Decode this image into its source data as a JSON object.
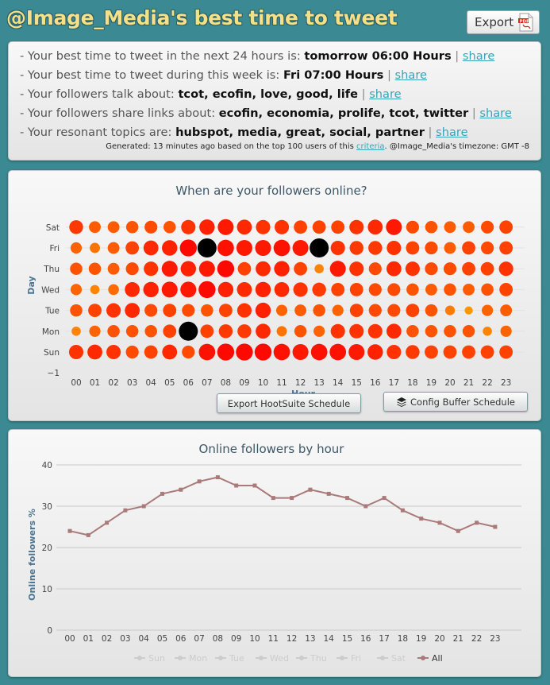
{
  "title": "@Image_Media's best time to tweet",
  "export_label": "Export",
  "info": {
    "lines": [
      {
        "prefix": "- Your best time to tweet in the next 24 hours is:",
        "value": "tomorrow 06:00 Hours",
        "link": "share"
      },
      {
        "prefix": "- Your best time to tweet during this week is:",
        "value": "Fri 07:00 Hours",
        "link": "share"
      },
      {
        "prefix": "- Your followers talk about:",
        "value": "tcot, ecofin, love, good, life",
        "link": "share"
      },
      {
        "prefix": "- Your followers share links about:",
        "value": "ecofin, economia, prolife, tcot, twitter",
        "link": "share"
      },
      {
        "prefix": "- Your resonant topics are:",
        "value": "hubspot, media, great, social, partner",
        "link": "share"
      }
    ],
    "generated_prefix": "Generated: 13 minutes ago based on the top 100 users of this",
    "generated_link": "criteria",
    "generated_suffix": ". @Image_Media's timezone: GMT -8"
  },
  "buttons": {
    "hootsuite": "Export HootSuite Schedule",
    "buffer": "Config Buffer Schedule"
  },
  "colors": {
    "heat_low": "#ffa500",
    "heat_high": "#ff0000",
    "peak": "#000000",
    "line": "#aa7a7a"
  },
  "chart_data": [
    {
      "type": "heatmap",
      "title": "When are your followers online?",
      "xlabel": "Hour",
      "ylabel": "Day",
      "x": [
        "00",
        "01",
        "02",
        "03",
        "04",
        "05",
        "06",
        "07",
        "08",
        "09",
        "10",
        "11",
        "12",
        "13",
        "14",
        "15",
        "16",
        "17",
        "18",
        "19",
        "20",
        "21",
        "22",
        "23"
      ],
      "y": [
        "Sun",
        "Mon",
        "Tue",
        "Wed",
        "Thu",
        "Fri",
        "Sat"
      ],
      "y_extra_tick": "−1",
      "values": [
        [
          0.7,
          0.75,
          0.7,
          0.55,
          0.6,
          0.75,
          0.55,
          0.9,
          0.95,
          0.95,
          0.95,
          0.9,
          0.85,
          0.9,
          0.9,
          0.85,
          0.8,
          0.7,
          0.65,
          0.6,
          0.6,
          0.6,
          0.6,
          0.6
        ],
        [
          0.2,
          0.4,
          0.5,
          0.5,
          0.5,
          0.6,
          1.0,
          0.6,
          0.65,
          0.65,
          0.75,
          0.3,
          0.5,
          0.4,
          0.7,
          0.7,
          0.7,
          0.75,
          0.5,
          0.5,
          0.5,
          0.5,
          0.2,
          0.4
        ],
        [
          0.5,
          0.6,
          0.7,
          0.75,
          0.55,
          0.6,
          0.55,
          0.5,
          0.6,
          0.7,
          0.8,
          0.4,
          0.45,
          0.5,
          0.4,
          0.6,
          0.55,
          0.55,
          0.6,
          0.5,
          0.25,
          0.1,
          0.4,
          0.45
        ],
        [
          0.4,
          0.2,
          0.35,
          0.75,
          0.8,
          0.85,
          0.85,
          0.95,
          0.8,
          0.75,
          0.8,
          0.75,
          0.7,
          0.65,
          0.6,
          0.6,
          0.55,
          0.55,
          0.5,
          0.45,
          0.5,
          0.45,
          0.5,
          0.6
        ],
        [
          0.5,
          0.5,
          0.45,
          0.55,
          0.7,
          0.85,
          0.8,
          0.85,
          0.95,
          0.6,
          0.75,
          0.8,
          0.6,
          0.2,
          0.85,
          0.7,
          0.55,
          0.75,
          0.7,
          0.55,
          0.55,
          0.6,
          0.6,
          0.7
        ],
        [
          0.4,
          0.3,
          0.45,
          0.6,
          0.75,
          0.8,
          0.95,
          1.0,
          0.9,
          0.85,
          0.85,
          0.9,
          0.85,
          1.0,
          0.7,
          0.65,
          0.65,
          0.7,
          0.6,
          0.55,
          0.45,
          0.6,
          0.55,
          0.6
        ],
        [
          0.65,
          0.45,
          0.45,
          0.5,
          0.55,
          0.5,
          0.7,
          0.8,
          0.85,
          0.75,
          0.7,
          0.7,
          0.6,
          0.6,
          0.6,
          0.7,
          0.75,
          0.85,
          0.55,
          0.5,
          0.45,
          0.45,
          0.55,
          0.6
        ]
      ],
      "peaks": [
        [
          1,
          6
        ],
        [
          5,
          7
        ],
        [
          5,
          13
        ]
      ]
    },
    {
      "type": "line",
      "title": "Online followers by hour",
      "xlabel": "",
      "ylabel": "Online followers %",
      "ylim": [
        0,
        40
      ],
      "yticks": [
        0,
        10,
        20,
        30,
        40
      ],
      "categories": [
        "00",
        "01",
        "02",
        "03",
        "04",
        "05",
        "06",
        "07",
        "08",
        "09",
        "10",
        "11",
        "12",
        "13",
        "14",
        "15",
        "16",
        "17",
        "18",
        "19",
        "20",
        "21",
        "22",
        "23"
      ],
      "series": [
        {
          "name": "All",
          "values": [
            24,
            23,
            26,
            29,
            30,
            33,
            34,
            36,
            37,
            35,
            35,
            32,
            32,
            34,
            33,
            32,
            30,
            32,
            29,
            27,
            26,
            24,
            26,
            25
          ]
        }
      ],
      "legend": [
        "Sun",
        "Mon",
        "Tue",
        "Wed",
        "Thu",
        "Fri",
        "Sat",
        "All"
      ],
      "legend_placement": "bottom"
    }
  ]
}
